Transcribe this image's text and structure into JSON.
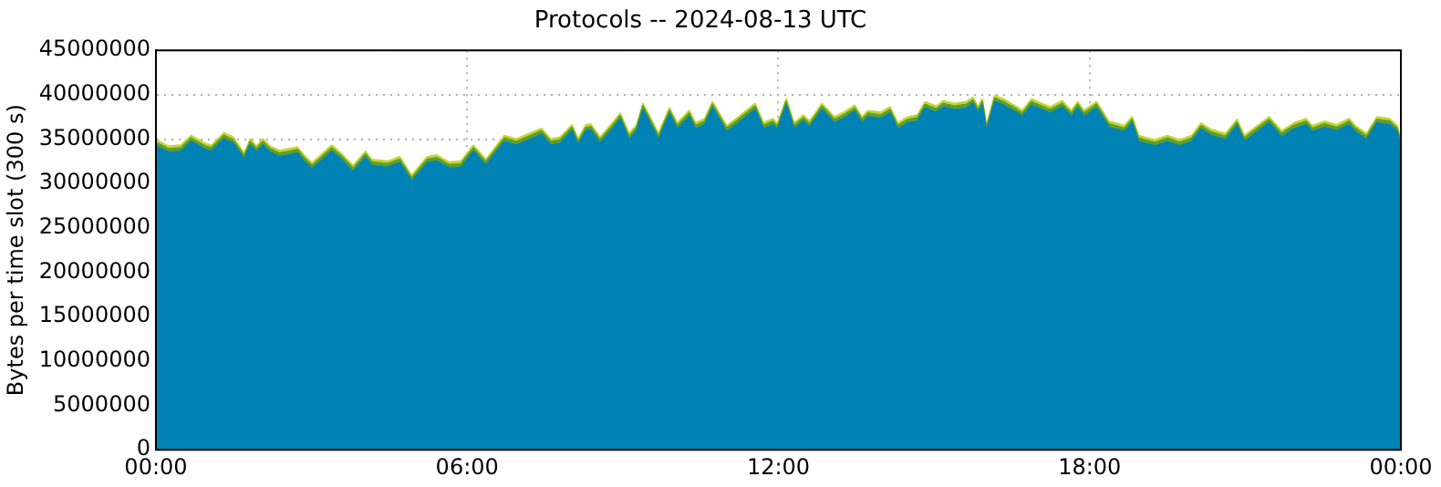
{
  "chart_data": {
    "type": "area",
    "title": "Protocols -- 2024-08-13 UTC",
    "ylabel": "Bytes per time slot (300 s)",
    "stacked": true,
    "legend": false,
    "grid": true,
    "x": [
      0,
      0.24,
      0.48,
      0.68,
      0.95,
      1.07,
      1.31,
      1.49,
      1.7,
      1.82,
      1.94,
      2.06,
      2.2,
      2.38,
      2.73,
      2.85,
      3.01,
      3.39,
      3.57,
      3.8,
      4.04,
      4.16,
      4.46,
      4.7,
      4.93,
      5.23,
      5.41,
      5.65,
      5.88,
      6.12,
      6.36,
      6.72,
      6.95,
      7.43,
      7.61,
      7.79,
      8.02,
      8.14,
      8.29,
      8.38,
      8.56,
      8.8,
      8.95,
      9.12,
      9.27,
      9.39,
      9.69,
      9.9,
      10.05,
      10.28,
      10.4,
      10.58,
      10.73,
      11.0,
      11.23,
      11.55,
      11.71,
      11.89,
      11.98,
      12.15,
      12.3,
      12.48,
      12.6,
      12.84,
      13.08,
      13.26,
      13.47,
      13.61,
      13.73,
      13.97,
      14.15,
      14.3,
      14.5,
      14.68,
      14.83,
      15.04,
      15.18,
      15.4,
      15.63,
      15.75,
      15.85,
      15.93,
      16.01,
      16.17,
      16.34,
      16.58,
      16.7,
      16.88,
      17.24,
      17.47,
      17.65,
      17.77,
      17.89,
      18.13,
      18.37,
      18.67,
      18.82,
      18.94,
      19.26,
      19.5,
      19.73,
      19.97,
      20.15,
      20.33,
      20.62,
      20.84,
      20.98,
      21.46,
      21.7,
      21.93,
      22.17,
      22.29,
      22.53,
      22.76,
      23.0,
      23.12,
      23.34,
      23.54,
      23.78,
      23.93,
      24
    ],
    "series": [
      {
        "color": "#0083b4",
        "values": [
          34200000,
          33500000,
          33600000,
          34700000,
          33800000,
          33600000,
          35000000,
          34500000,
          32700000,
          34300000,
          33500000,
          34300000,
          33500000,
          33000000,
          33400000,
          32500000,
          31600000,
          33600000,
          32700000,
          31300000,
          32900000,
          32000000,
          31800000,
          32300000,
          30200000,
          32300000,
          32500000,
          31700000,
          31800000,
          33600000,
          32000000,
          34700000,
          34300000,
          35500000,
          34300000,
          34500000,
          35900000,
          34300000,
          35900000,
          36000000,
          34500000,
          36100000,
          37200000,
          34900000,
          35900000,
          38300000,
          34900000,
          37800000,
          36100000,
          37500000,
          36100000,
          36600000,
          38500000,
          35800000,
          36800000,
          38300000,
          36100000,
          36600000,
          36000000,
          38800000,
          36100000,
          37000000,
          36300000,
          38300000,
          36800000,
          37300000,
          38100000,
          36800000,
          37500000,
          37300000,
          37900000,
          36100000,
          36800000,
          37000000,
          38500000,
          38000000,
          38600000,
          38300000,
          38500000,
          39000000,
          37900000,
          38800000,
          35800000,
          39200000,
          38800000,
          38000000,
          37500000,
          38800000,
          37900000,
          38600000,
          37500000,
          38500000,
          37500000,
          38500000,
          36300000,
          35800000,
          36800000,
          34700000,
          34200000,
          34700000,
          34200000,
          34700000,
          36100000,
          35400000,
          34900000,
          36500000,
          34700000,
          36800000,
          35200000,
          36100000,
          36600000,
          35800000,
          36300000,
          35900000,
          36600000,
          35800000,
          34900000,
          36800000,
          36600000,
          35800000,
          34000000
        ]
      },
      {
        "color": "#5e9e2e",
        "values": [
          400000,
          400000,
          400000,
          400000,
          400000,
          400000,
          400000,
          400000,
          400000,
          400000,
          400000,
          400000,
          400000,
          400000,
          400000,
          400000,
          400000,
          400000,
          400000,
          400000,
          400000,
          400000,
          400000,
          400000,
          400000,
          400000,
          400000,
          400000,
          400000,
          400000,
          400000,
          400000,
          400000,
          400000,
          400000,
          400000,
          400000,
          400000,
          400000,
          400000,
          400000,
          400000,
          400000,
          400000,
          400000,
          400000,
          400000,
          400000,
          400000,
          400000,
          400000,
          400000,
          400000,
          400000,
          400000,
          400000,
          400000,
          400000,
          400000,
          400000,
          400000,
          400000,
          400000,
          400000,
          400000,
          400000,
          400000,
          400000,
          400000,
          400000,
          400000,
          400000,
          400000,
          400000,
          400000,
          400000,
          400000,
          400000,
          400000,
          400000,
          400000,
          400000,
          400000,
          400000,
          400000,
          400000,
          400000,
          400000,
          400000,
          400000,
          400000,
          400000,
          400000,
          400000,
          400000,
          400000,
          400000,
          400000,
          400000,
          400000,
          400000,
          400000,
          400000,
          400000,
          400000,
          400000,
          400000,
          400000,
          400000,
          400000,
          400000,
          400000,
          400000,
          400000,
          400000,
          400000,
          400000,
          400000,
          400000,
          400000,
          400000
        ]
      },
      {
        "color": "#c4d632",
        "values": [
          300000,
          300000,
          300000,
          300000,
          300000,
          300000,
          300000,
          300000,
          300000,
          300000,
          300000,
          300000,
          300000,
          300000,
          300000,
          300000,
          300000,
          300000,
          300000,
          300000,
          300000,
          300000,
          300000,
          300000,
          300000,
          300000,
          300000,
          300000,
          300000,
          300000,
          300000,
          300000,
          300000,
          300000,
          300000,
          300000,
          300000,
          300000,
          300000,
          300000,
          300000,
          300000,
          300000,
          300000,
          300000,
          300000,
          300000,
          300000,
          300000,
          300000,
          300000,
          300000,
          300000,
          300000,
          300000,
          300000,
          300000,
          300000,
          300000,
          300000,
          300000,
          300000,
          300000,
          300000,
          300000,
          300000,
          300000,
          300000,
          300000,
          300000,
          300000,
          300000,
          300000,
          300000,
          300000,
          300000,
          300000,
          300000,
          300000,
          300000,
          300000,
          300000,
          300000,
          300000,
          300000,
          300000,
          300000,
          300000,
          300000,
          300000,
          300000,
          300000,
          300000,
          300000,
          300000,
          300000,
          300000,
          300000,
          300000,
          300000,
          300000,
          300000,
          300000,
          300000,
          300000,
          300000,
          300000,
          300000,
          300000,
          300000,
          300000,
          300000,
          300000,
          300000,
          300000,
          300000,
          300000,
          300000,
          300000,
          300000,
          300000
        ]
      }
    ],
    "xlim": [
      0,
      24
    ],
    "xticks": [
      {
        "value": 0,
        "label": "00:00"
      },
      {
        "value": 6,
        "label": "06:00"
      },
      {
        "value": 12,
        "label": "12:00"
      },
      {
        "value": 18,
        "label": "18:00"
      },
      {
        "value": 24,
        "label": "00:00"
      }
    ],
    "ylim": [
      0,
      45000000
    ],
    "yticks": [
      0,
      5000000,
      10000000,
      15000000,
      20000000,
      25000000,
      30000000,
      35000000,
      40000000,
      45000000
    ]
  }
}
